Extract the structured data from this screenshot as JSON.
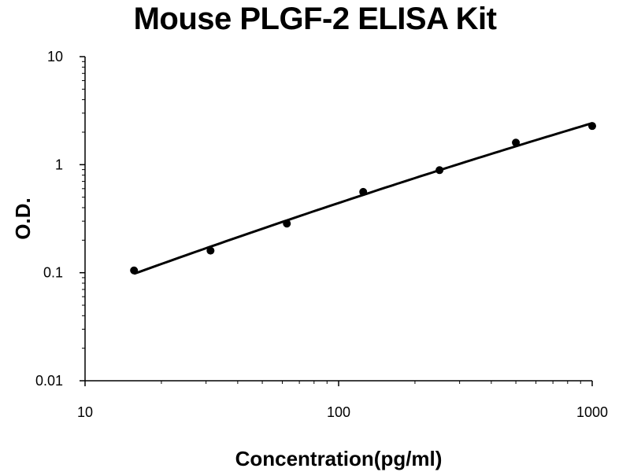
{
  "chart_data": {
    "type": "scatter",
    "title": "Mouse PLGF-2 ELISA Kit",
    "xlabel": "Concentration(pg/ml)",
    "ylabel": "O.D.",
    "x_scale": "log",
    "y_scale": "log",
    "xlim": [
      10,
      1000
    ],
    "ylim": [
      0.01,
      10
    ],
    "x_ticks": [
      "10",
      "100",
      "1000"
    ],
    "y_ticks": [
      "10",
      "1",
      "0.1",
      "0.01"
    ],
    "grid": false,
    "legend": "none",
    "series": [
      {
        "x": [
          15.6,
          31.25,
          62.5,
          125,
          250,
          500,
          1000
        ],
        "y": [
          0.105,
          0.16,
          0.285,
          0.56,
          0.89,
          1.6,
          2.28
        ],
        "fit_curve": true
      }
    ]
  },
  "colors": {
    "marker": "#000000",
    "curve": "#000000",
    "axis": "#000000"
  }
}
